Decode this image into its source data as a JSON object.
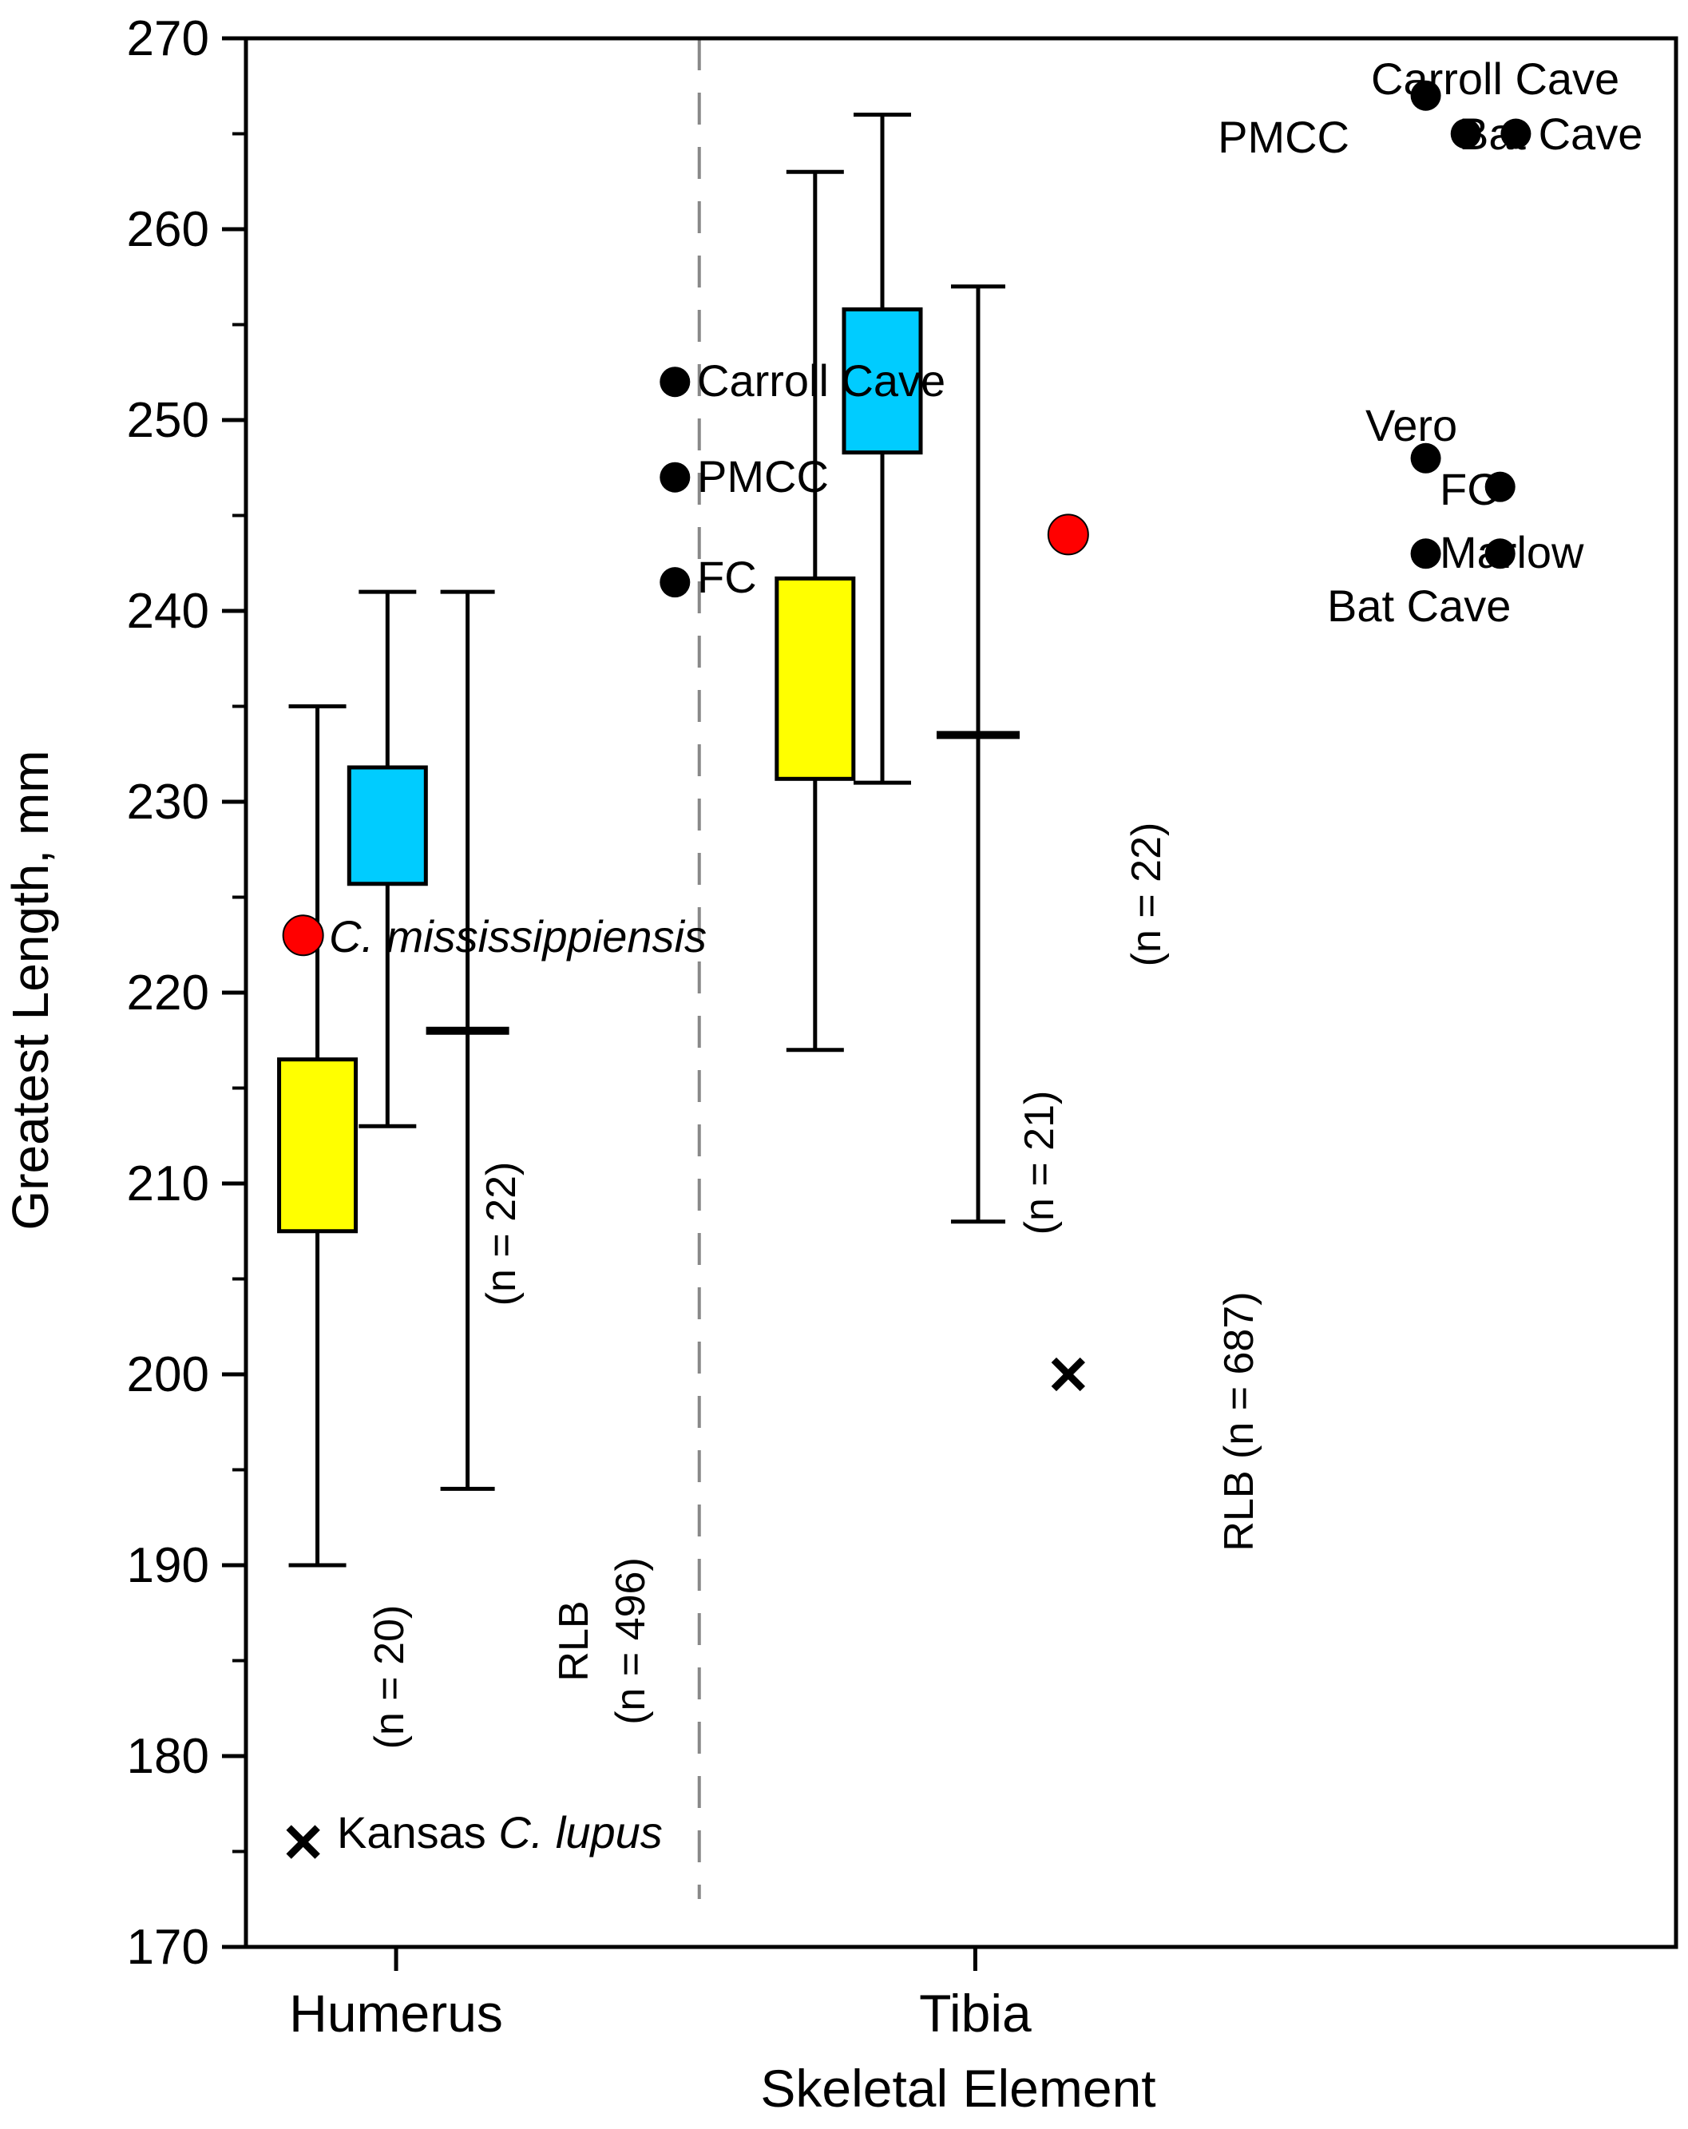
{
  "chart_data": {
    "type": "box",
    "ylabel": "Greatest Length, mm",
    "xlabel": "Skeletal Element",
    "categories": [
      "Humerus",
      "Tibia"
    ],
    "ylim": [
      170,
      270
    ],
    "yticks": [
      170,
      180,
      190,
      200,
      210,
      220,
      230,
      240,
      250,
      260,
      270
    ],
    "grid": false,
    "colors": {
      "yellow_box": "#ffff00",
      "blue_box": "#00ccff",
      "red_point": "#ff0000",
      "black": "#000000",
      "divider": "#888888"
    },
    "boxes": [
      {
        "category": "Humerus",
        "offset": -0.55,
        "color": "#ffff00",
        "q1": 207.5,
        "q3": 216.5,
        "min": 190,
        "max": 235,
        "n_label": "(n = 20)"
      },
      {
        "category": "Humerus",
        "offset": -0.06,
        "color": "#00ccff",
        "q1": 225.7,
        "q3": 231.8,
        "min": 213,
        "max": 241,
        "n_label": "(n = 22)"
      },
      {
        "category": "Tibia",
        "offset": -1.12,
        "color": "#ffff00",
        "q1": 231.2,
        "q3": 241.7,
        "min": 217,
        "max": 263,
        "n_label": "(n = 21)"
      },
      {
        "category": "Tibia",
        "offset": -0.65,
        "color": "#00ccff",
        "q1": 248.3,
        "q3": 255.8,
        "min": 231,
        "max": 266,
        "n_label": "(n = 22)"
      }
    ],
    "ranges": [
      {
        "category": "Humerus",
        "offset": 0.5,
        "min": 194,
        "max": 241,
        "mean": 218,
        "label": "RLB",
        "n_label": "(n = 496)"
      },
      {
        "category": "Tibia",
        "offset": 0.02,
        "min": 208,
        "max": 257,
        "mean": 233.5,
        "label": "RLB (n = 687)"
      }
    ],
    "points": [
      {
        "name": "C. mississippiensis",
        "x": 0.04,
        "y": 223,
        "marker": "red-circle"
      },
      {
        "name": "C. mississippiensis",
        "x": 0.575,
        "y": 244,
        "marker": "red-circle"
      },
      {
        "name": "Kansas C. lupus",
        "x": 0.04,
        "y": 175.5,
        "marker": "x"
      },
      {
        "name": "Kansas C. lupus",
        "x": 0.575,
        "y": 200,
        "marker": "x"
      },
      {
        "name": "Carroll Cave",
        "x": 0.3,
        "y": 252,
        "marker": "black-circle"
      },
      {
        "name": "PMCC",
        "x": 0.3,
        "y": 247,
        "marker": "black-circle"
      },
      {
        "name": "FC",
        "x": 0.3,
        "y": 241.5,
        "marker": "black-circle"
      },
      {
        "name": "Carroll Cave",
        "x": 0.825,
        "y": 267,
        "marker": "black-circle"
      },
      {
        "name": "PMCC",
        "x": 0.853,
        "y": 265,
        "marker": "black-circle"
      },
      {
        "name": "Bat Cave",
        "x": 0.888,
        "y": 265,
        "marker": "black-circle"
      },
      {
        "name": "Vero",
        "x": 0.825,
        "y": 248,
        "marker": "black-circle"
      },
      {
        "name": "FC",
        "x": 0.877,
        "y": 246.5,
        "marker": "black-circle"
      },
      {
        "name": "Bat Cave",
        "x": 0.825,
        "y": 243,
        "marker": "black-circle"
      },
      {
        "name": "Marlow",
        "x": 0.877,
        "y": 243,
        "marker": "black-circle"
      }
    ],
    "annotations": {
      "c_miss_prefix": "C. ",
      "c_miss_italic": "mississippiensis",
      "kansas_prefix": "Kansas ",
      "kansas_italic": "C. lupus",
      "hum_carroll": "Carroll Cave",
      "hum_pmcc": "PMCC",
      "hum_fc": "FC",
      "tib_carroll": "Carroll Cave",
      "tib_pmcc": "PMCC",
      "tib_batcave_top": "Bat Cave",
      "tib_vero": "Vero",
      "tib_fc": "FC",
      "tib_marlow": "Marlow",
      "tib_batcave_bottom": "Bat Cave"
    }
  }
}
